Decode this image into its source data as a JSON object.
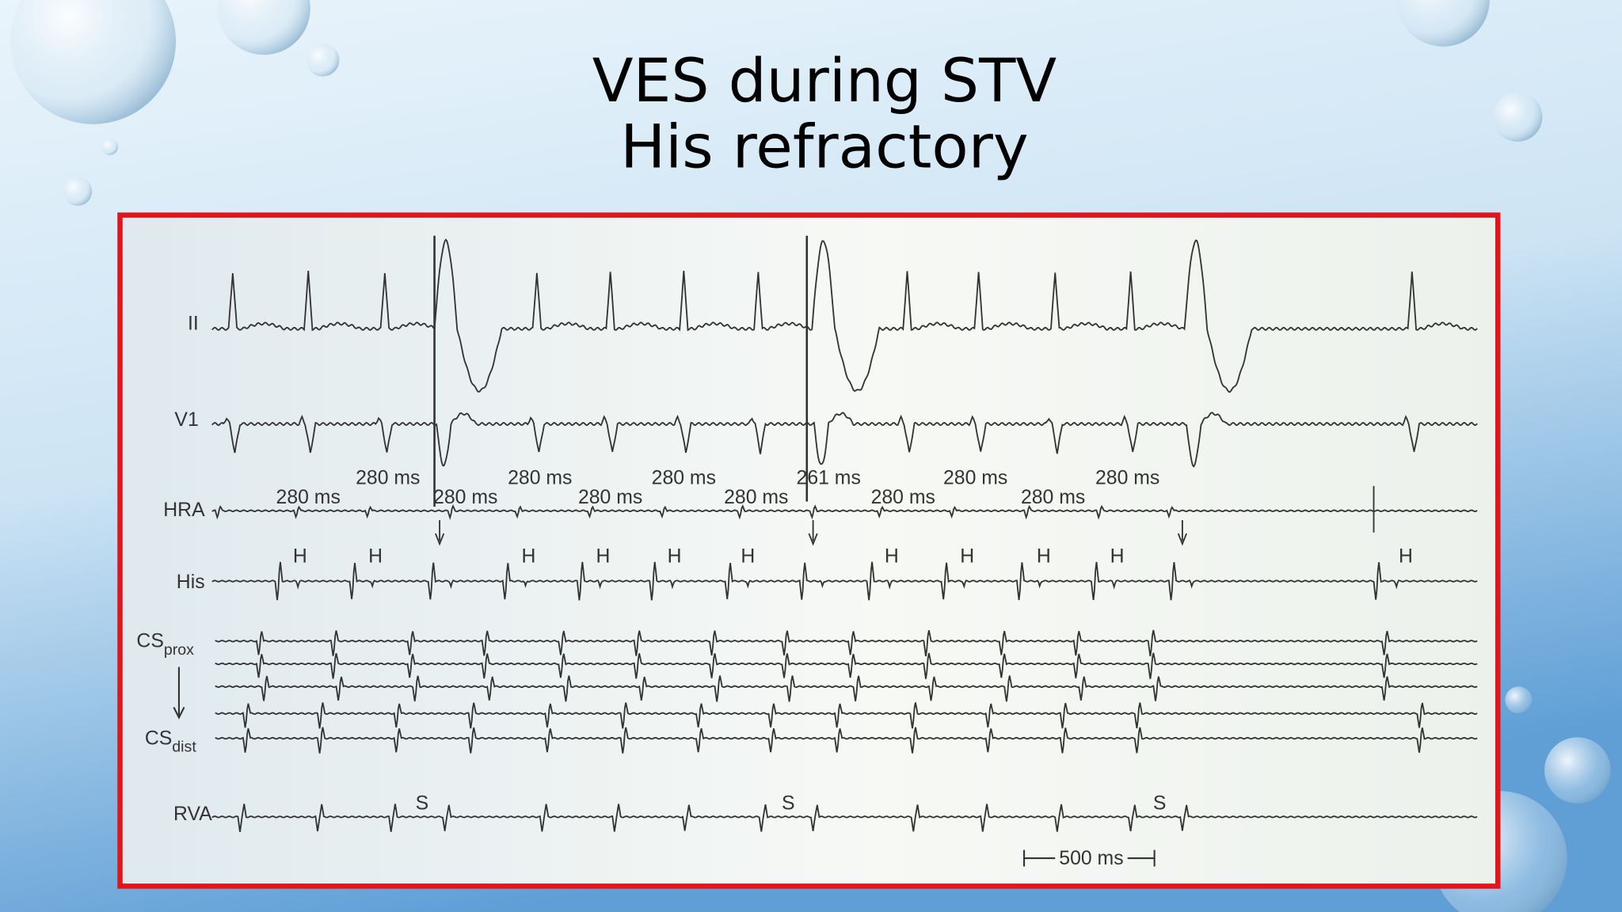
{
  "title": [
    "VES during STV",
    "His refractory"
  ],
  "channels": [
    "II",
    "V1",
    "HRA",
    "His",
    {
      "main": "CS",
      "sub": "prox"
    },
    {
      "main": "CS",
      "sub": "dist"
    },
    "RVA"
  ],
  "intervals_upper": [
    "280 ms",
    "280 ms",
    "280 ms",
    "261 ms",
    "280 ms",
    "280 ms"
  ],
  "intervals_lower": [
    "280 ms",
    "280 ms",
    "280 ms",
    "280 ms",
    "280 ms",
    "280 ms"
  ],
  "his_markers": [
    "H",
    "H",
    "H",
    "H",
    "H",
    "H",
    "H",
    "H",
    "H",
    "H",
    "H"
  ],
  "stim_markers": [
    "S",
    "S",
    "S"
  ],
  "scale_bar": "500 ms"
}
